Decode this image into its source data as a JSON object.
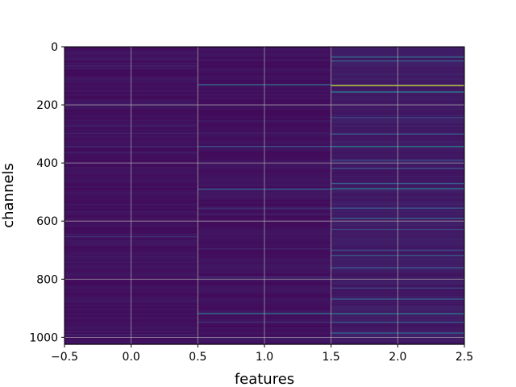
{
  "chart_data": {
    "type": "heatmap",
    "title": "",
    "xlabel": "features",
    "ylabel": "channels",
    "xlim": [
      -0.5,
      2.5
    ],
    "ylim": [
      1024,
      0
    ],
    "y_inverted": true,
    "x_ticks": [
      -0.5,
      0.0,
      0.5,
      1.0,
      1.5,
      2.0,
      2.5
    ],
    "x_tick_labels": [
      "−0.5",
      "0.0",
      "0.5",
      "1.0",
      "1.5",
      "2.0",
      "2.5"
    ],
    "y_ticks": [
      0,
      200,
      400,
      600,
      800,
      1000
    ],
    "y_tick_labels": [
      "0",
      "200",
      "400",
      "600",
      "800",
      "1000"
    ],
    "grid": true,
    "colormap": "viridis",
    "columns": [
      0,
      1,
      2
    ],
    "rows": 1024,
    "background_value": 0.04,
    "column_base_values": [
      0.05,
      0.05,
      0.08
    ],
    "highlighted_cells": [
      {
        "col": 0,
        "row": 66,
        "value": 0.12
      },
      {
        "col": 0,
        "row": 273,
        "value": 0.1
      },
      {
        "col": 0,
        "row": 298,
        "value": 0.1
      },
      {
        "col": 0,
        "row": 343,
        "value": 0.12
      },
      {
        "col": 0,
        "row": 363,
        "value": 0.1
      },
      {
        "col": 0,
        "row": 653,
        "value": 0.15
      },
      {
        "col": 0,
        "row": 990,
        "value": 0.12
      },
      {
        "col": 1,
        "row": 130,
        "value": 0.35
      },
      {
        "col": 1,
        "row": 343,
        "value": 0.25
      },
      {
        "col": 1,
        "row": 490,
        "value": 0.3
      },
      {
        "col": 1,
        "row": 555,
        "value": 0.15
      },
      {
        "col": 1,
        "row": 695,
        "value": 0.12
      },
      {
        "col": 1,
        "row": 792,
        "value": 0.15
      },
      {
        "col": 1,
        "row": 918,
        "value": 0.38
      },
      {
        "col": 1,
        "row": 948,
        "value": 0.15
      },
      {
        "col": 2,
        "row": 35,
        "value": 0.35
      },
      {
        "col": 2,
        "row": 48,
        "value": 0.3
      },
      {
        "col": 2,
        "row": 133,
        "value": 0.9
      },
      {
        "col": 2,
        "row": 155,
        "value": 0.4
      },
      {
        "col": 2,
        "row": 243,
        "value": 0.2
      },
      {
        "col": 2,
        "row": 300,
        "value": 0.28
      },
      {
        "col": 2,
        "row": 343,
        "value": 0.4
      },
      {
        "col": 2,
        "row": 390,
        "value": 0.22
      },
      {
        "col": 2,
        "row": 418,
        "value": 0.25
      },
      {
        "col": 2,
        "row": 470,
        "value": 0.3
      },
      {
        "col": 2,
        "row": 488,
        "value": 0.4
      },
      {
        "col": 2,
        "row": 555,
        "value": 0.25
      },
      {
        "col": 2,
        "row": 590,
        "value": 0.3
      },
      {
        "col": 2,
        "row": 628,
        "value": 0.22
      },
      {
        "col": 2,
        "row": 700,
        "value": 0.22
      },
      {
        "col": 2,
        "row": 718,
        "value": 0.3
      },
      {
        "col": 2,
        "row": 760,
        "value": 0.28
      },
      {
        "col": 2,
        "row": 830,
        "value": 0.2
      },
      {
        "col": 2,
        "row": 868,
        "value": 0.3
      },
      {
        "col": 2,
        "row": 918,
        "value": 0.4
      },
      {
        "col": 2,
        "row": 948,
        "value": 0.28
      },
      {
        "col": 2,
        "row": 985,
        "value": 0.3
      }
    ]
  }
}
